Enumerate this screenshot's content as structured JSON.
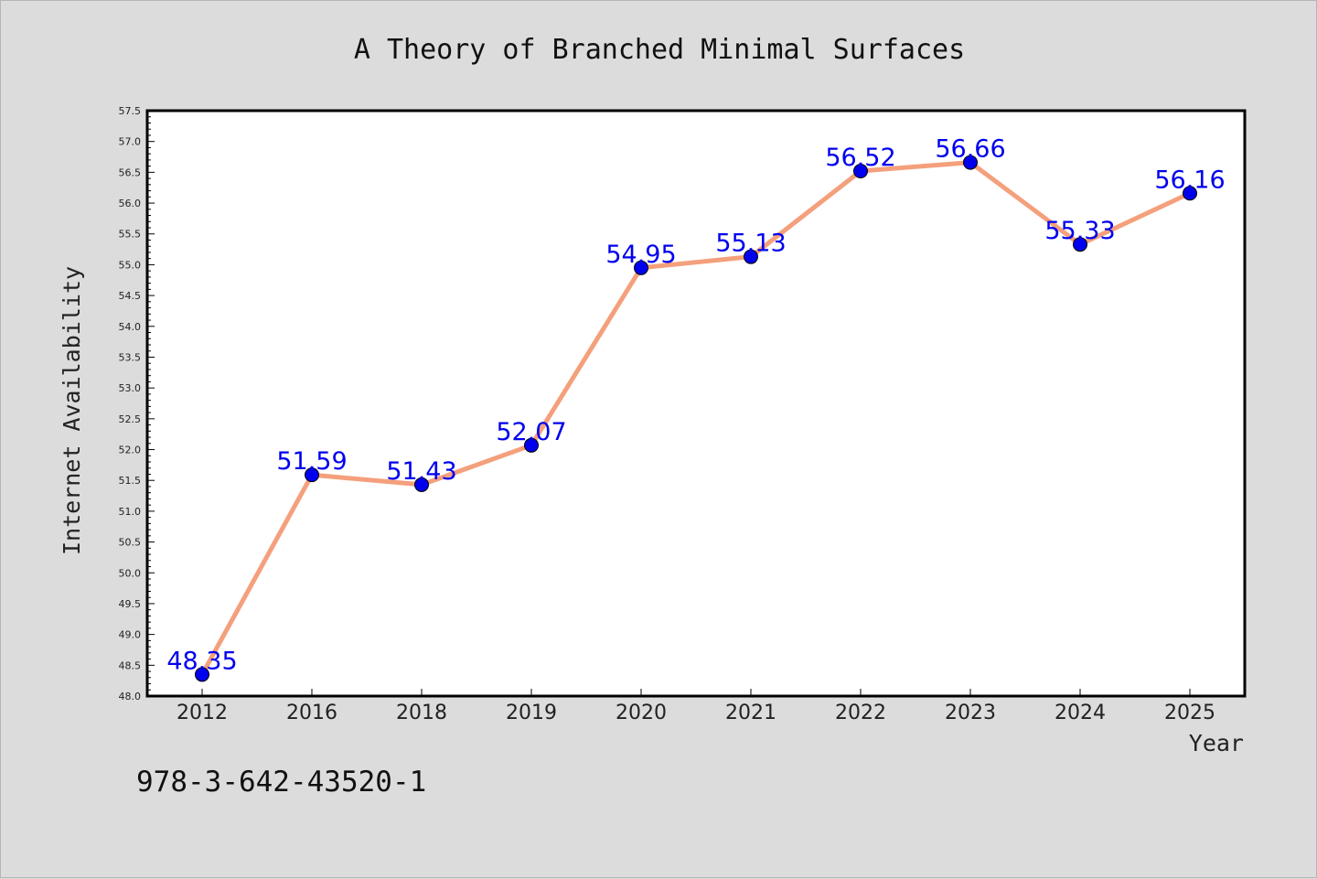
{
  "chart_data": {
    "type": "line",
    "title": "A Theory of Branched Minimal Surfaces",
    "xlabel": "Year",
    "ylabel": "Internet Availability",
    "categories": [
      "2012",
      "2016",
      "2018",
      "2019",
      "2020",
      "2021",
      "2022",
      "2023",
      "2024",
      "2025"
    ],
    "series": [
      {
        "values": [
          48.35,
          51.59,
          51.43,
          52.07,
          54.95,
          55.13,
          56.52,
          56.66,
          55.33,
          56.16
        ],
        "data_labels": [
          "48.35",
          "51.59",
          "51.43",
          "52.07",
          "54.95",
          "55.13",
          "56.52",
          "56.66",
          "55.33",
          "56.16"
        ]
      }
    ],
    "ylim": [
      48.0,
      57.5
    ],
    "yticks": [
      "48.0",
      "48.5",
      "49.0",
      "49.5",
      "50.0",
      "50.5",
      "51.0",
      "51.5",
      "52.0",
      "52.5",
      "53.0",
      "53.5",
      "54.0",
      "54.5",
      "55.0",
      "55.5",
      "56.0",
      "56.5",
      "57.0",
      "57.5"
    ],
    "grid": false,
    "line_color": "#f4a07c",
    "marker_color": "#0000ee",
    "label_color": "#0000ee",
    "plot_background": "#ffffff",
    "page_background": "#dcdcdc"
  },
  "footer": {
    "isbn": "978-3-642-43520-1"
  }
}
